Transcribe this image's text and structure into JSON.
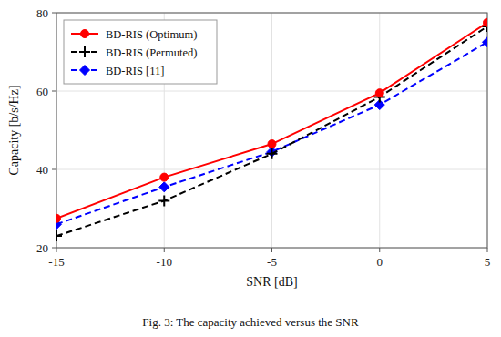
{
  "chart_data": {
    "type": "line",
    "x": [
      -15,
      -10,
      -5,
      0,
      5
    ],
    "series": [
      {
        "name": "BD-RIS (Optimum)",
        "color": "#FF0000",
        "marker": "circle",
        "line_style": "solid",
        "values": [
          27.5,
          38.0,
          46.5,
          59.5,
          77.5
        ]
      },
      {
        "name": "BD-RIS (Permuted)",
        "color": "#000000",
        "marker": "plus",
        "line_style": "dashed",
        "values": [
          23.0,
          32.0,
          44.0,
          58.5,
          76.5
        ]
      },
      {
        "name": "BD-RIS [11]",
        "color": "#0000FF",
        "marker": "diamond",
        "line_style": "dashed",
        "values": [
          26.0,
          35.5,
          44.5,
          56.5,
          72.5
        ]
      }
    ],
    "x_label": "SNR [dB]",
    "y_label": "Capacity [b/s/Hz]",
    "xlim": [
      -15,
      5
    ],
    "ylim": [
      20,
      80
    ],
    "xticks": [
      -15,
      -10,
      -5,
      0,
      5
    ],
    "yticks": [
      20,
      40,
      60,
      80
    ],
    "grid": true,
    "legend": "top-left",
    "annotations": [
      "Fig. 3: The capacity achieved versus the SNR"
    ]
  }
}
